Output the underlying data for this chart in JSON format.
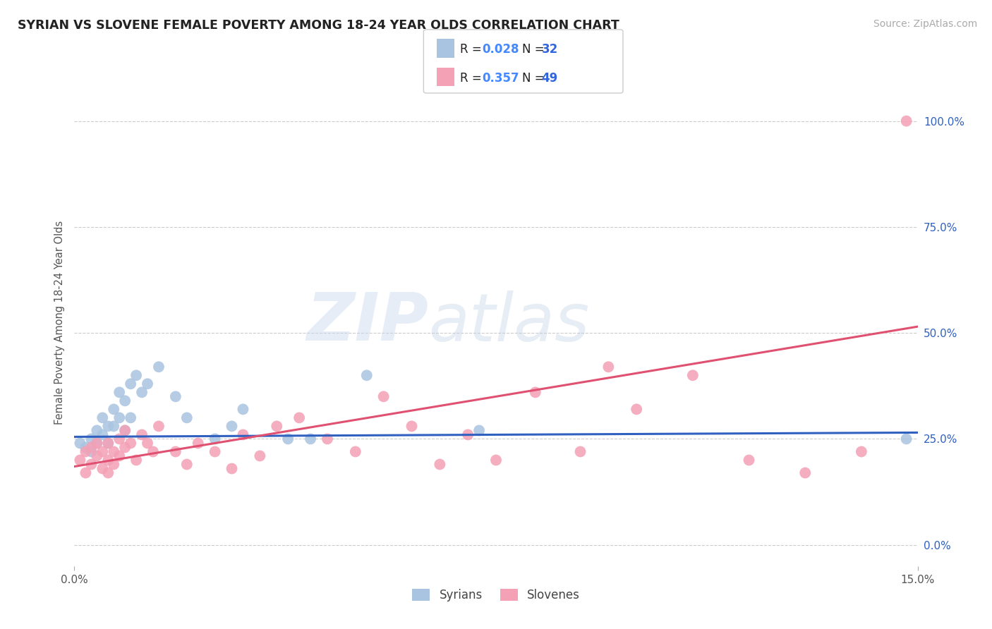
{
  "title": "SYRIAN VS SLOVENE FEMALE POVERTY AMONG 18-24 YEAR OLDS CORRELATION CHART",
  "source": "Source: ZipAtlas.com",
  "ylabel": "Female Poverty Among 18-24 Year Olds",
  "xlim": [
    0.0,
    0.15
  ],
  "ylim": [
    -0.05,
    1.1
  ],
  "ytick_labels_right": [
    "0.0%",
    "25.0%",
    "50.0%",
    "75.0%",
    "100.0%"
  ],
  "yticks_right": [
    0.0,
    0.25,
    0.5,
    0.75,
    1.0
  ],
  "legend_label1": "Syrians",
  "legend_label2": "Slovenes",
  "color_syrians": "#a8c4e0",
  "color_slovenes": "#f4a0b5",
  "color_line_syrians": "#3060c0",
  "color_line_slovenes": "#e05070",
  "color_R_text": "#4488ff",
  "color_N_text": "#3366dd",
  "watermark_zip": "ZIP",
  "watermark_atlas": "atlas",
  "syrians_x": [
    0.001,
    0.002,
    0.003,
    0.003,
    0.004,
    0.004,
    0.005,
    0.005,
    0.006,
    0.006,
    0.007,
    0.007,
    0.008,
    0.008,
    0.009,
    0.009,
    0.01,
    0.01,
    0.011,
    0.012,
    0.013,
    0.015,
    0.018,
    0.02,
    0.025,
    0.028,
    0.03,
    0.038,
    0.042,
    0.052,
    0.072,
    0.148
  ],
  "syrians_y": [
    0.24,
    0.23,
    0.25,
    0.22,
    0.27,
    0.24,
    0.3,
    0.26,
    0.28,
    0.24,
    0.32,
    0.28,
    0.36,
    0.3,
    0.34,
    0.27,
    0.38,
    0.3,
    0.4,
    0.36,
    0.38,
    0.42,
    0.35,
    0.3,
    0.25,
    0.28,
    0.32,
    0.25,
    0.25,
    0.4,
    0.27,
    0.25
  ],
  "slovenes_x": [
    0.001,
    0.002,
    0.002,
    0.003,
    0.003,
    0.004,
    0.004,
    0.005,
    0.005,
    0.006,
    0.006,
    0.006,
    0.007,
    0.007,
    0.008,
    0.008,
    0.009,
    0.009,
    0.01,
    0.011,
    0.012,
    0.013,
    0.014,
    0.015,
    0.018,
    0.02,
    0.022,
    0.025,
    0.028,
    0.03,
    0.033,
    0.036,
    0.04,
    0.045,
    0.05,
    0.055,
    0.06,
    0.065,
    0.07,
    0.075,
    0.082,
    0.09,
    0.095,
    0.1,
    0.11,
    0.12,
    0.13,
    0.14,
    0.148
  ],
  "slovenes_y": [
    0.2,
    0.17,
    0.22,
    0.19,
    0.23,
    0.21,
    0.24,
    0.22,
    0.18,
    0.24,
    0.2,
    0.17,
    0.22,
    0.19,
    0.25,
    0.21,
    0.27,
    0.23,
    0.24,
    0.2,
    0.26,
    0.24,
    0.22,
    0.28,
    0.22,
    0.19,
    0.24,
    0.22,
    0.18,
    0.26,
    0.21,
    0.28,
    0.3,
    0.25,
    0.22,
    0.35,
    0.28,
    0.19,
    0.26,
    0.2,
    0.36,
    0.22,
    0.42,
    0.32,
    0.4,
    0.2,
    0.17,
    0.22,
    1.0
  ],
  "line_syrians_x0": 0.0,
  "line_syrians_x1": 0.15,
  "line_syrians_y0": 0.255,
  "line_syrians_y1": 0.265,
  "line_slovenes_x0": 0.0,
  "line_slovenes_x1": 0.15,
  "line_slovenes_y0": 0.185,
  "line_slovenes_y1": 0.515
}
